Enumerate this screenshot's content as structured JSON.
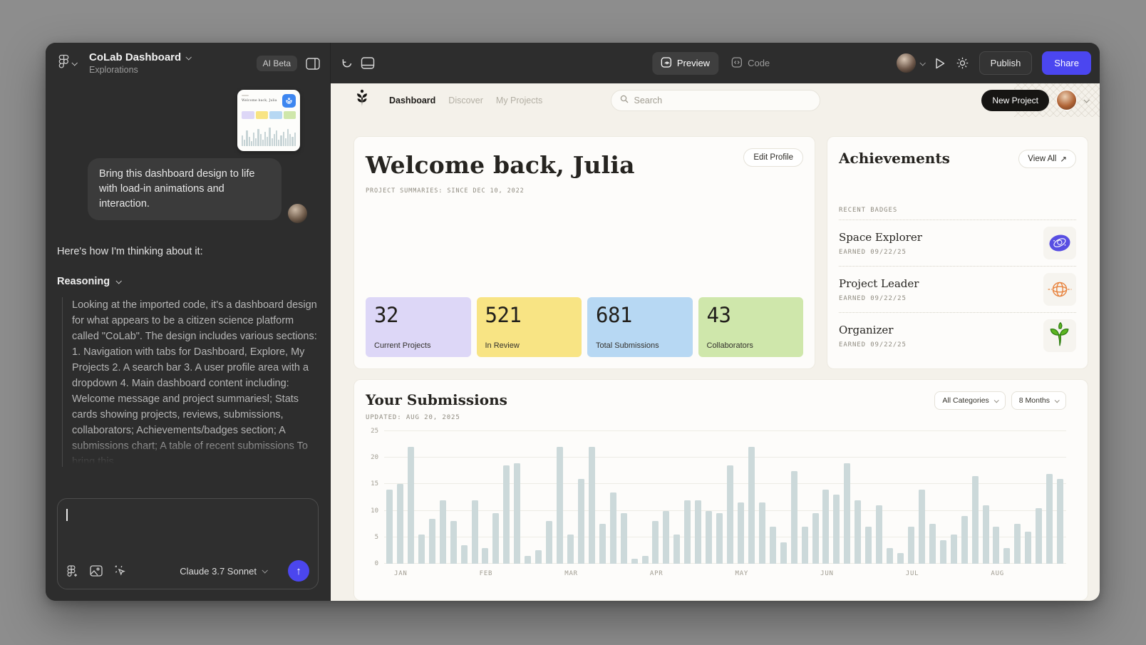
{
  "chat": {
    "header": {
      "title": "CoLab Dashboard",
      "subtitle": "Explorations",
      "badge": "AI Beta"
    },
    "thumbnail": {
      "title": "Welcome back, Julia",
      "chips": [
        "#ddd7f7",
        "#f8e484",
        "#b7d8f3",
        "#cfe7ab"
      ],
      "bars": [
        8,
        5,
        12,
        7,
        4,
        10,
        6,
        13,
        9,
        5,
        11,
        7,
        14,
        6,
        9,
        12,
        5,
        8,
        11,
        6,
        13,
        9,
        7,
        10
      ]
    },
    "message": "Bring this dashboard design to life with load-in animations and interaction.",
    "thinking_intro": "Here's how I'm thinking about it:",
    "reasoning_label": "Reasoning",
    "reasoning_body": "Looking at the imported code, it's a dashboard design for what appears to be a citizen science platform called \"CoLab\". The design includes various sections: 1. Navigation with tabs for Dashboard, Explore, My Projects 2. A search bar 3. A user profile area with a dropdown 4. Main dashboard content including: Welcome message and project summariesl; Stats cards showing projects, reviews, submissions, collaborators; Achievements/badges section; A submissions chart; A table of recent submissions To bring this",
    "input": {
      "model": "Claude 3.7 Sonnet",
      "send_icon": "↑"
    }
  },
  "toolbar": {
    "preview": "Preview",
    "code": "Code",
    "publish": "Publish",
    "share": "Share"
  },
  "dashboard": {
    "nav": {
      "links": [
        "Dashboard",
        "Discover",
        "My Projects"
      ],
      "active": "Dashboard",
      "search_placeholder": "Search",
      "new_project": "New Project"
    },
    "welcome": {
      "title": "Welcome back, Julia",
      "subtitle": "PROJECT SUMMARIES: SINCE DEC 10, 2022",
      "edit_profile": "Edit Profile",
      "stats": [
        {
          "value": "32",
          "label": "Current Projects",
          "color": "#ddd7f7"
        },
        {
          "value": "521",
          "label": "In Review",
          "color": "#f8e484"
        },
        {
          "value": "681",
          "label": "Total Submissions",
          "color": "#b7d8f3"
        },
        {
          "value": "43",
          "label": "Collaborators",
          "color": "#cfe7ab"
        }
      ]
    },
    "achievements": {
      "title": "Achievements",
      "view_all": "View All",
      "view_all_icon": "↗",
      "section": "RECENT BADGES",
      "badges": [
        {
          "name": "Space Explorer",
          "earned": "EARNED 09/22/25"
        },
        {
          "name": "Project Leader",
          "earned": "EARNED 09/22/25"
        },
        {
          "name": "Organizer",
          "earned": "EARNED 09/22/25"
        }
      ]
    },
    "submissions": {
      "title": "Your Submissions",
      "updated": "UPDATED: AUG 20, 2025",
      "filters": [
        "All Categories",
        "8 Months"
      ]
    }
  },
  "chart_data": {
    "type": "bar",
    "title": "Your Submissions",
    "xlabel": "",
    "ylabel": "",
    "x_months": [
      "JAN",
      "FEB",
      "MAR",
      "APR",
      "MAY",
      "JUN",
      "JUL",
      "AUG"
    ],
    "bars_per_month": 8,
    "yticks": [
      0,
      5,
      10,
      15,
      20,
      25
    ],
    "ylim": [
      0,
      25
    ],
    "grid": "horizontal",
    "legend": "none",
    "bar_color": "#ccd9da",
    "values": [
      14,
      15,
      22,
      5.5,
      8.5,
      12,
      8,
      3.5,
      12,
      3,
      9.5,
      18.5,
      19,
      1.5,
      2.5,
      8,
      22,
      5.5,
      16,
      22,
      7.5,
      13.5,
      9.5,
      1,
      1.5,
      8,
      10,
      5.5,
      12,
      12,
      10,
      9.5,
      18.5,
      11.5,
      22,
      11.5,
      7,
      4,
      17.5,
      7,
      9.5,
      14,
      13,
      19,
      12,
      7,
      11,
      3,
      2,
      7,
      14,
      7.5,
      4.5,
      5.5,
      9,
      16.5,
      11,
      7,
      3,
      7.5,
      6,
      10.5,
      17,
      16
    ]
  }
}
